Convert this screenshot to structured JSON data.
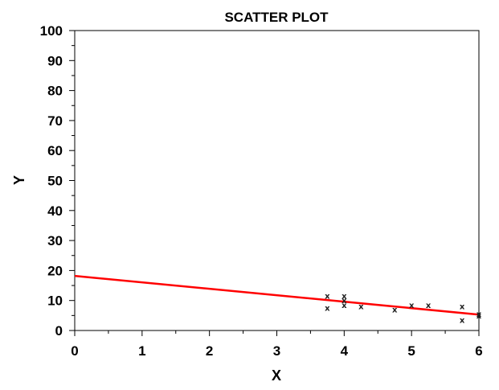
{
  "chart_data": {
    "type": "scatter",
    "title": "SCATTER PLOT",
    "xlabel": "X",
    "ylabel": "Y",
    "xlim": [
      0,
      6
    ],
    "ylim": [
      0,
      100
    ],
    "x_ticks": [
      "0",
      "1",
      "2",
      "3",
      "4",
      "5",
      "6"
    ],
    "y_ticks": [
      "0",
      "10",
      "20",
      "30",
      "40",
      "50",
      "60",
      "70",
      "80",
      "90",
      "100"
    ],
    "grid": false,
    "marker": "x",
    "points": [
      {
        "x": 3.75,
        "y": 11.5
      },
      {
        "x": 3.75,
        "y": 7.5
      },
      {
        "x": 4.0,
        "y": 11.5
      },
      {
        "x": 4.0,
        "y": 10.0
      },
      {
        "x": 4.0,
        "y": 8.5
      },
      {
        "x": 4.25,
        "y": 8.0
      },
      {
        "x": 4.75,
        "y": 7.0
      },
      {
        "x": 5.0,
        "y": 8.5
      },
      {
        "x": 5.25,
        "y": 8.5
      },
      {
        "x": 5.75,
        "y": 8.0
      },
      {
        "x": 5.75,
        "y": 3.5
      },
      {
        "x": 6.0,
        "y": 5.5
      },
      {
        "x": 6.0,
        "y": 5.0
      }
    ],
    "fit_line": {
      "color": "#ff0000",
      "x": [
        0,
        6
      ],
      "y": [
        18.2,
        5.3
      ]
    },
    "colors": {
      "axis": "#000000",
      "marker": "#222222",
      "fit": "#ff0000"
    }
  }
}
